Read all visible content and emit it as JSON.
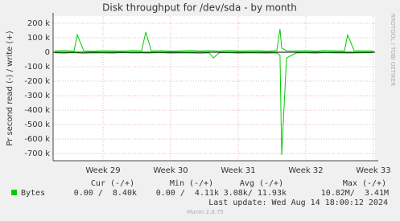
{
  "chart_data": {
    "type": "line",
    "title": "Disk throughput for /dev/sda - by month",
    "y_label": "Pr second read (-) / write (+)",
    "side_label": "RRDTOOL / TOBI OETIKER",
    "x": [
      -5,
      -4,
      -3,
      -2.67,
      -2,
      -1,
      0,
      1,
      2,
      3,
      4,
      4.42,
      5,
      6,
      7,
      8,
      9,
      10,
      11,
      11.42,
      12,
      13,
      14,
      15,
      16,
      17,
      18,
      18.33,
      18.5,
      19,
      20,
      21,
      22,
      23,
      24,
      25,
      25.33,
      26,
      27,
      28
    ],
    "series": [
      {
        "color": "#00cc00",
        "values": [
          9000,
          12000,
          8000,
          120000,
          10000,
          7000,
          11000,
          9000,
          8000,
          12000,
          10000,
          140000,
          9000,
          11000,
          8000,
          10000,
          12000,
          9000,
          11000,
          10000,
          8000,
          12000,
          9000,
          10000,
          11000,
          8000,
          12000,
          160000,
          30000,
          10000,
          9000,
          11000,
          8000,
          12000,
          10000,
          9000,
          120000,
          11000,
          10000,
          9000
        ]
      },
      {
        "color": "#00cc00",
        "values": [
          -4000,
          -6000,
          -3000,
          -5000,
          -7000,
          -4000,
          -5000,
          -6000,
          -3000,
          -5000,
          -4000,
          -6000,
          -5000,
          -3000,
          -6000,
          -4000,
          -5000,
          -7000,
          -4000,
          -40000,
          -5000,
          -3000,
          -6000,
          -4000,
          -5000,
          -6000,
          -4000,
          -20000,
          -710000,
          -40000,
          -5000,
          -4000,
          -6000,
          -3000,
          -5000,
          -4000,
          -6000,
          -5000,
          -4000,
          -3000
        ]
      }
    ],
    "xlim": [
      -5.17,
      28.17
    ],
    "xticks": [
      {
        "value": 0,
        "label": "Week 29"
      },
      {
        "value": 7,
        "label": "Week 30"
      },
      {
        "value": 14,
        "label": "Week 31"
      },
      {
        "value": 21,
        "label": "Week 32"
      },
      {
        "value": 28,
        "label": "Week 33"
      }
    ],
    "ylim": [
      -750000,
      250000
    ],
    "yticks": [
      {
        "value": 200000,
        "label": "200 k"
      },
      {
        "value": 100000,
        "label": "100 k"
      },
      0,
      {
        "value": -100000,
        "label": "-100 k"
      },
      {
        "value": -200000,
        "label": "-200 k"
      },
      {
        "value": -300000,
        "label": "-300 k"
      },
      {
        "value": -400000,
        "label": "-400 k"
      },
      {
        "value": -500000,
        "label": "-500 k"
      },
      {
        "value": -600000,
        "label": "-600 k"
      },
      {
        "value": -700000,
        "label": "-700 k"
      }
    ],
    "grid": true,
    "legend": {
      "headers": [
        "Cur (-/+)",
        "Min (-/+)",
        "Avg (-/+)",
        "Max (-/+)"
      ],
      "label": "Bytes",
      "color": "#00cc00",
      "values": [
        "0.00 /  8.40k",
        "0.00 /  4.11k",
        "3.08k/ 11.93k",
        "10.82M/  3.41M"
      ]
    },
    "last_update": "Last update: Wed Aug 14 18:00:12 2024",
    "footer": "Munin 2.0.75"
  }
}
